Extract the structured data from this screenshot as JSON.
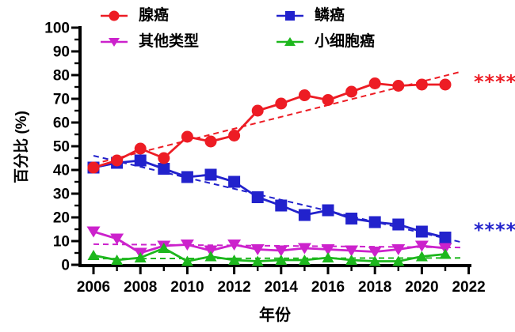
{
  "chart_data": {
    "type": "line",
    "title": "",
    "xlabel": "年份",
    "ylabel": "百分比 (%)",
    "xlim": [
      2005.4,
      2022.15
    ],
    "ylim": [
      0,
      100
    ],
    "x_major_ticks": [
      2006,
      2008,
      2010,
      2012,
      2014,
      2016,
      2018,
      2020,
      2022
    ],
    "x_minor_ticks": [
      2007,
      2009,
      2011,
      2013,
      2015,
      2017,
      2019,
      2021
    ],
    "y_major_step": 10,
    "y_minor_step": 5,
    "grid": false,
    "legend_position": "top",
    "axis_color": "#000000",
    "x": [
      2006,
      2007,
      2008,
      2009,
      2010,
      2011,
      2012,
      2013,
      2014,
      2015,
      2016,
      2017,
      2018,
      2019,
      2020,
      2021
    ],
    "series": [
      {
        "key": "adenocarcinoma",
        "name": "腺癌",
        "color": "#ED1C24",
        "marker": "circle",
        "line_style": "solid",
        "values": [
          41,
          44,
          49,
          45,
          54,
          52,
          54.5,
          65,
          68,
          71.5,
          69.5,
          73,
          76.5,
          75.5,
          76,
          76
        ],
        "trend": {
          "from": [
            2006,
            42.5
          ],
          "to": [
            2021.7,
            81.5
          ]
        }
      },
      {
        "key": "squamous-carcinoma",
        "name": "鳞癌",
        "color": "#2222CC",
        "marker": "square",
        "line_style": "solid",
        "values": [
          41,
          43,
          44,
          40.5,
          37,
          38,
          35,
          28.5,
          25,
          21,
          23,
          19.5,
          18,
          17,
          14,
          11.5
        ],
        "trend": {
          "from": [
            2006,
            46
          ],
          "to": [
            2021.7,
            9.5
          ]
        }
      },
      {
        "key": "other-types",
        "name": "其他类型",
        "color": "#CC22CC",
        "marker": "triangle-down",
        "line_style": "solid",
        "values": [
          14,
          11,
          5,
          8,
          8.5,
          6,
          8.5,
          6.5,
          6,
          7,
          6.5,
          6,
          5.5,
          6.5,
          8,
          7
        ],
        "trend": {
          "from": [
            2006,
            8.7
          ],
          "to": [
            2021.7,
            7.3
          ]
        }
      },
      {
        "key": "small-cell-carcinoma",
        "name": "小细胞癌",
        "color": "#1DB71D",
        "marker": "triangle-up",
        "line_style": "solid",
        "values": [
          4,
          2,
          3,
          7,
          1.5,
          3.5,
          2,
          1.5,
          2,
          2,
          3,
          2,
          1.5,
          1.5,
          3.5,
          4.5
        ],
        "trend": {
          "from": [
            2006,
            2.6
          ],
          "to": [
            2021.7,
            2.9
          ]
        }
      }
    ],
    "annotations": [
      {
        "text": "****",
        "series_key": "adenocarcinoma",
        "color": "#ED1C24",
        "y_value": 78.5
      },
      {
        "text": "****",
        "series_key": "squamous-carcinoma",
        "color": "#2222CC",
        "y_value": 16
      }
    ]
  }
}
